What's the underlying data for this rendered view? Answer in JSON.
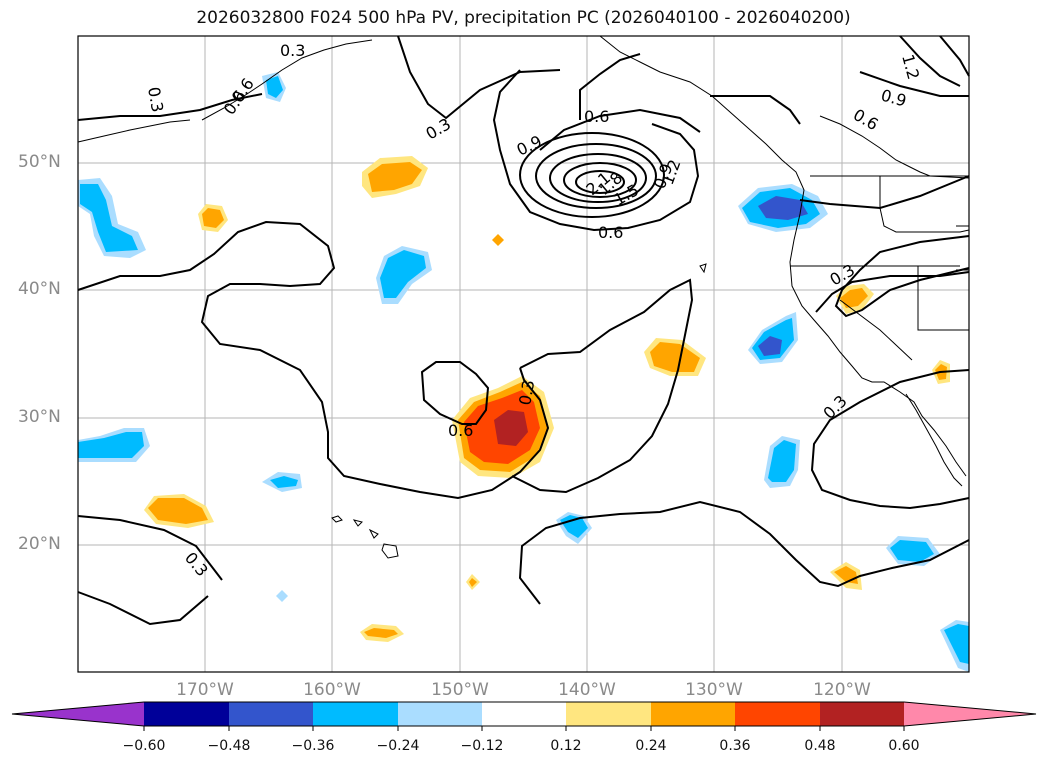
{
  "title": "2026032800 F024 500 hPa PV, precipitation PC (2026040100 - 2026040200)",
  "axes": {
    "lat_labels": [
      "50°N",
      "40°N",
      "30°N",
      "20°N"
    ],
    "lon_labels": [
      "170°W",
      "160°W",
      "150°W",
      "140°W",
      "130°W",
      "120°W"
    ]
  },
  "contour_labels": [
    "0.3",
    "0.6",
    "0.3",
    "0.9",
    "0.6",
    "0.9",
    "1.2",
    "1.5",
    "1.8",
    "2.1",
    "0.6",
    "0.9",
    "1.2",
    "0.6",
    "0.3",
    "0.6",
    "0.3",
    "0.3",
    "0.3",
    "0.3",
    "0.6"
  ],
  "colorbar": {
    "ticks": [
      "−0.60",
      "−0.48",
      "−0.36",
      "−0.24",
      "−0.12",
      "0.12",
      "0.24",
      "0.36",
      "0.48",
      "0.60"
    ],
    "colors": [
      "#9933cc",
      "#000099",
      "#3355cc",
      "#00bbff",
      "#aaddff",
      "#ffffff",
      "#ffe680",
      "#ffa500",
      "#ff4500",
      "#b22222",
      "#ff88aa"
    ]
  },
  "field_colors": {
    "pos_low": "#ffe680",
    "pos_mid": "#ffa500",
    "pos_high": "#ff4500",
    "pos_max": "#b22222",
    "neg_low": "#aaddff",
    "neg_mid": "#00bbff",
    "neg_high": "#3355cc"
  }
}
